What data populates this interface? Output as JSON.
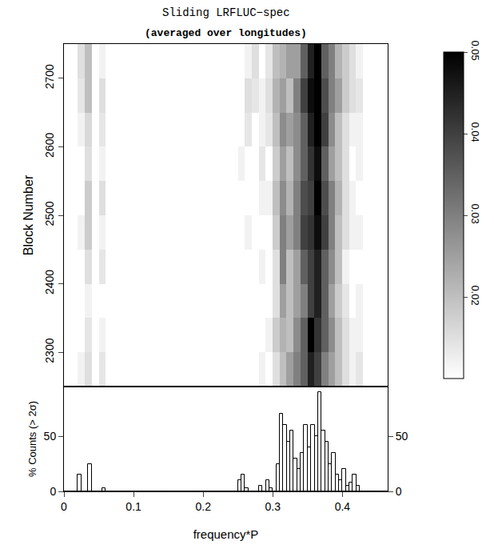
{
  "chart_data": [
    {
      "type": "heatmap",
      "title": "Sliding LRFLUC−spec",
      "subtitle": "(averaged over longitudes)",
      "y_label": "Block Number",
      "tick_labels": "y",
      "x": [
        0.005,
        0.015,
        0.025,
        0.035,
        0.045,
        0.055,
        0.065,
        0.075,
        0.085,
        0.095,
        0.105,
        0.115,
        0.125,
        0.135,
        0.145,
        0.155,
        0.165,
        0.175,
        0.185,
        0.195,
        0.205,
        0.215,
        0.225,
        0.235,
        0.245,
        0.255,
        0.265,
        0.275,
        0.285,
        0.295,
        0.305,
        0.315,
        0.325,
        0.335,
        0.345,
        0.355,
        0.365,
        0.375,
        0.385,
        0.395,
        0.405,
        0.415,
        0.425,
        0.435,
        0.445,
        0.455,
        0.465,
        0.475,
        0.485,
        0.495
      ],
      "y": [
        2275,
        2325,
        2375,
        2425,
        2475,
        2525,
        2575,
        2625,
        2675,
        2725
      ],
      "z": [
        [
          0,
          0,
          0.012,
          0.015,
          0,
          0.014,
          0,
          0,
          0,
          0,
          0,
          0,
          0,
          0,
          0,
          0,
          0,
          0,
          0,
          0,
          0,
          0,
          0,
          0,
          0,
          0,
          0,
          0,
          0.012,
          0,
          0.015,
          0.02,
          0.025,
          0.03,
          0.035,
          0.045,
          0.04,
          0.03,
          0.025,
          0.02,
          0.015,
          0.012,
          0.014,
          0,
          0,
          0,
          0,
          0,
          0,
          0
        ],
        [
          0,
          0,
          0,
          0.014,
          0,
          0.012,
          0,
          0,
          0,
          0,
          0,
          0,
          0,
          0,
          0,
          0,
          0,
          0,
          0,
          0,
          0,
          0,
          0,
          0,
          0,
          0,
          0,
          0,
          0,
          0.012,
          0.018,
          0.022,
          0.02,
          0.028,
          0.035,
          0.05,
          0.042,
          0.035,
          0.028,
          0.02,
          0.015,
          0.012,
          0.012,
          0,
          0,
          0,
          0,
          0,
          0,
          0
        ],
        [
          0,
          0,
          0,
          0.012,
          0,
          0,
          0,
          0,
          0,
          0,
          0,
          0,
          0,
          0,
          0,
          0,
          0,
          0,
          0,
          0,
          0,
          0,
          0,
          0,
          0,
          0,
          0,
          0,
          0,
          0,
          0.015,
          0.025,
          0.02,
          0.025,
          0.03,
          0.04,
          0.045,
          0.035,
          0.025,
          0.018,
          0.014,
          0,
          0.012,
          0,
          0,
          0,
          0,
          0,
          0,
          0
        ],
        [
          0,
          0,
          0,
          0.015,
          0,
          0.014,
          0,
          0,
          0,
          0,
          0,
          0,
          0,
          0,
          0,
          0,
          0,
          0,
          0,
          0,
          0,
          0,
          0,
          0,
          0,
          0,
          0,
          0,
          0.012,
          0,
          0.015,
          0.03,
          0.02,
          0.025,
          0.035,
          0.04,
          0.045,
          0.035,
          0.028,
          0.02,
          0.012,
          0,
          0,
          0,
          0,
          0,
          0,
          0,
          0,
          0
        ],
        [
          0,
          0,
          0.012,
          0.018,
          0,
          0.012,
          0,
          0,
          0,
          0,
          0,
          0,
          0,
          0,
          0,
          0,
          0,
          0,
          0,
          0,
          0,
          0,
          0,
          0,
          0,
          0,
          0.012,
          0,
          0,
          0,
          0.018,
          0.03,
          0.025,
          0.03,
          0.04,
          0.042,
          0.048,
          0.04,
          0.03,
          0.02,
          0.015,
          0.012,
          0.012,
          0,
          0,
          0,
          0,
          0,
          0,
          0
        ],
        [
          0,
          0,
          0,
          0.018,
          0,
          0.015,
          0,
          0,
          0,
          0,
          0,
          0,
          0,
          0,
          0,
          0,
          0,
          0,
          0,
          0,
          0,
          0,
          0,
          0,
          0,
          0,
          0,
          0,
          0.012,
          0.012,
          0.02,
          0.028,
          0.022,
          0.03,
          0.038,
          0.04,
          0.05,
          0.038,
          0.03,
          0.022,
          0.015,
          0.012,
          0,
          0,
          0,
          0,
          0,
          0,
          0,
          0
        ],
        [
          0,
          0,
          0,
          0.015,
          0,
          0.012,
          0,
          0,
          0,
          0,
          0,
          0,
          0,
          0,
          0,
          0,
          0,
          0,
          0,
          0,
          0,
          0,
          0,
          0,
          0,
          0.012,
          0,
          0,
          0.014,
          0,
          0.018,
          0.025,
          0.02,
          0.028,
          0.035,
          0.042,
          0.048,
          0.035,
          0.025,
          0.02,
          0.015,
          0,
          0.012,
          0,
          0,
          0,
          0,
          0,
          0,
          0
        ],
        [
          0,
          0,
          0.012,
          0.016,
          0,
          0.014,
          0,
          0,
          0,
          0,
          0,
          0,
          0,
          0,
          0,
          0,
          0,
          0,
          0,
          0,
          0,
          0,
          0,
          0,
          0,
          0,
          0.014,
          0,
          0.012,
          0.014,
          0.02,
          0.028,
          0.025,
          0.028,
          0.035,
          0.045,
          0.05,
          0.04,
          0.028,
          0.02,
          0.015,
          0.012,
          0.012,
          0,
          0,
          0,
          0,
          0,
          0,
          0
        ],
        [
          0,
          0,
          0.014,
          0.02,
          0,
          0.015,
          0,
          0,
          0,
          0,
          0,
          0,
          0,
          0,
          0,
          0,
          0,
          0,
          0,
          0,
          0,
          0,
          0,
          0,
          0,
          0,
          0.015,
          0.014,
          0.012,
          0.015,
          0.022,
          0.025,
          0.02,
          0.03,
          0.04,
          0.048,
          0.05,
          0.038,
          0.03,
          0.025,
          0.018,
          0.015,
          0.014,
          0,
          0,
          0,
          0,
          0,
          0,
          0
        ],
        [
          0,
          0,
          0.015,
          0.02,
          0,
          0.012,
          0,
          0,
          0,
          0,
          0,
          0,
          0,
          0,
          0,
          0,
          0,
          0,
          0,
          0,
          0,
          0,
          0,
          0,
          0,
          0,
          0.012,
          0.015,
          0,
          0.014,
          0.02,
          0.022,
          0.025,
          0.025,
          0.035,
          0.045,
          0.05,
          0.035,
          0.03,
          0.022,
          0.018,
          0.015,
          0.012,
          0,
          0,
          0,
          0,
          0,
          0,
          0
        ]
      ],
      "xlim": [
        0,
        0.465
      ],
      "ylim": [
        2250,
        2750
      ],
      "yticks": [
        2300,
        2400,
        2500,
        2600,
        2700
      ],
      "colorbar": {
        "range": [
          0.01,
          0.05
        ],
        "ticks": [
          0.02,
          0.03,
          0.04,
          0.05
        ]
      }
    },
    {
      "type": "histogram",
      "x_label": "frequency*P",
      "y_label": "% Counts (> 2σ)",
      "bins": [
        0,
        0.005,
        0.01,
        0.015,
        0.02,
        0.025,
        0.03,
        0.035,
        0.04,
        0.045,
        0.05,
        0.055,
        0.06,
        0.065,
        0.07,
        0.075,
        0.08,
        0.085,
        0.09,
        0.095,
        0.1,
        0.105,
        0.11,
        0.115,
        0.12,
        0.125,
        0.13,
        0.135,
        0.14,
        0.145,
        0.15,
        0.155,
        0.16,
        0.165,
        0.17,
        0.175,
        0.18,
        0.185,
        0.19,
        0.195,
        0.2,
        0.205,
        0.21,
        0.215,
        0.22,
        0.225,
        0.23,
        0.235,
        0.24,
        0.245,
        0.25,
        0.255,
        0.26,
        0.265,
        0.27,
        0.275,
        0.28,
        0.285,
        0.29,
        0.295,
        0.3,
        0.305,
        0.31,
        0.315,
        0.32,
        0.325,
        0.33,
        0.335,
        0.34,
        0.345,
        0.35,
        0.355,
        0.36,
        0.365,
        0.37,
        0.375,
        0.38,
        0.385,
        0.39,
        0.395,
        0.4,
        0.405,
        0.41,
        0.415,
        0.42,
        0.425,
        0.43,
        0.435,
        0.44,
        0.445,
        0.45,
        0.455,
        0.46,
        0.465,
        0.47,
        0.475,
        0.48,
        0.485,
        0.49,
        0.495,
        0.5
      ],
      "counts": [
        0,
        0,
        0,
        0,
        15,
        0,
        0,
        25,
        0,
        0,
        0,
        3,
        0,
        0,
        0,
        0,
        0,
        0,
        0,
        0,
        0,
        0,
        0,
        0,
        0,
        0,
        0,
        0,
        0,
        0,
        0,
        0,
        0,
        0,
        0,
        0,
        0,
        0,
        0,
        0,
        0,
        0,
        0,
        0,
        0,
        0,
        0,
        0,
        0,
        0,
        10,
        15,
        3,
        0,
        0,
        0,
        5,
        0,
        10,
        3,
        0,
        25,
        70,
        60,
        45,
        55,
        30,
        20,
        35,
        60,
        40,
        60,
        50,
        90,
        55,
        45,
        25,
        35,
        15,
        10,
        20,
        5,
        8,
        15,
        5,
        0,
        0,
        0,
        0,
        0,
        0,
        0,
        0,
        0,
        0,
        0,
        0,
        0,
        0,
        0
      ],
      "xlim": [
        0,
        0.465
      ],
      "ylim": [
        0,
        95
      ],
      "xticks": [
        0,
        0.1,
        0.2,
        0.3,
        0.4
      ],
      "yticks": [
        0,
        50
      ]
    }
  ]
}
